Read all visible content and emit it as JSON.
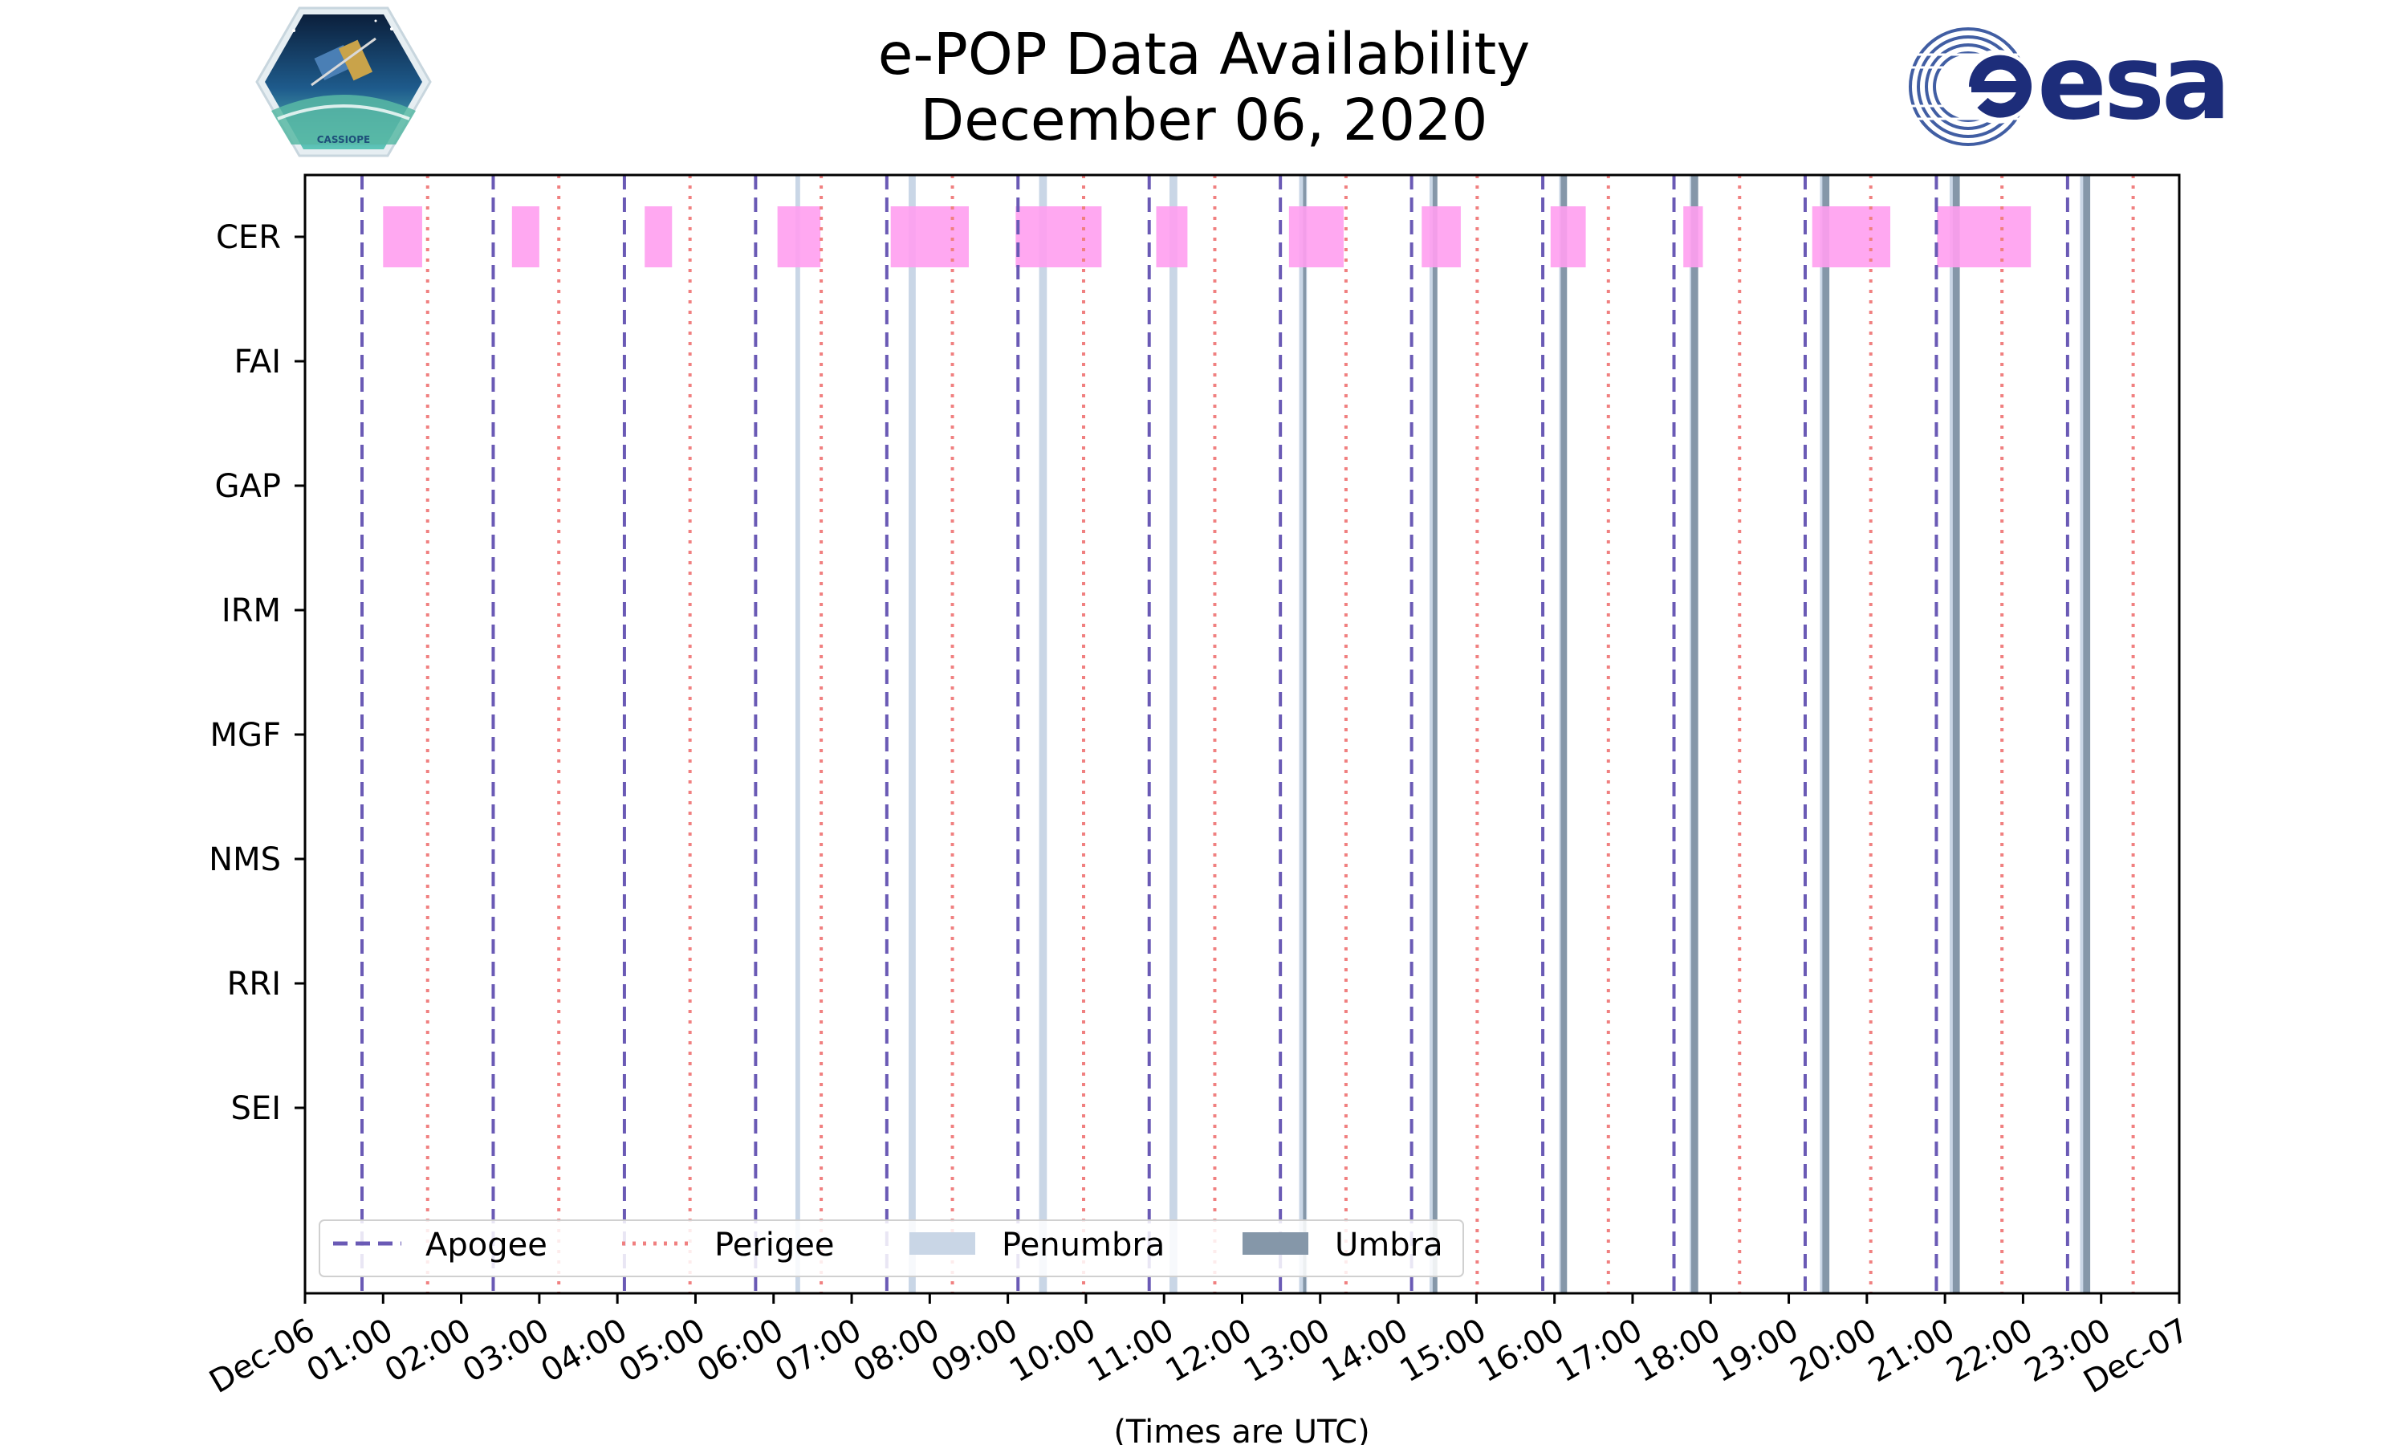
{
  "title": {
    "line1": "e-POP Data Availability",
    "line2": "December 06, 2020"
  },
  "logos": {
    "left": {
      "icon": "cassiope-mission-logo",
      "text": "CASSIOPE"
    },
    "right": {
      "icon": "esa-logo",
      "text": "esa"
    }
  },
  "colors": {
    "apogee": "#6a5ab5",
    "perigee": "#f08080",
    "penumbra": "#c9d6e6",
    "umbra": "#8597a9",
    "data": "#ff9ef0",
    "esa": "#1d2d7a"
  },
  "chart_data": {
    "type": "timeline",
    "title": "e-POP Data Availability December 06, 2020",
    "xlabel": "(Times are UTC)",
    "ylabel": "",
    "x_unit": "hours UTC",
    "xlim": [
      0,
      24
    ],
    "x_ticks": [
      "Dec-06",
      "01:00",
      "02:00",
      "03:00",
      "04:00",
      "05:00",
      "06:00",
      "07:00",
      "08:00",
      "09:00",
      "10:00",
      "11:00",
      "12:00",
      "13:00",
      "14:00",
      "15:00",
      "16:00",
      "17:00",
      "18:00",
      "19:00",
      "20:00",
      "21:00",
      "22:00",
      "23:00",
      "Dec-07"
    ],
    "instruments": [
      "CER",
      "FAI",
      "GAP",
      "IRM",
      "MGF",
      "NMS",
      "RRI",
      "SEI"
    ],
    "apogee_times": [
      0.73,
      2.41,
      4.09,
      5.77,
      7.45,
      9.13,
      10.81,
      12.49,
      14.17,
      15.85,
      17.53,
      19.21,
      20.89,
      22.57
    ],
    "perigee_times": [
      1.57,
      3.25,
      4.93,
      6.61,
      8.29,
      9.97,
      11.65,
      13.33,
      15.01,
      16.69,
      18.37,
      20.05,
      21.73,
      23.41
    ],
    "penumbra": [
      [
        6.28,
        6.34
      ],
      [
        7.73,
        7.82
      ],
      [
        9.4,
        9.5
      ],
      [
        11.07,
        11.17
      ],
      [
        12.73,
        12.83
      ],
      [
        14.4,
        14.5
      ],
      [
        16.06,
        16.16
      ],
      [
        17.73,
        17.83
      ],
      [
        19.4,
        19.5
      ],
      [
        21.06,
        21.16
      ],
      [
        22.73,
        22.83
      ]
    ],
    "umbra": [
      [
        12.78,
        12.82
      ],
      [
        14.44,
        14.5
      ],
      [
        16.08,
        16.16
      ],
      [
        17.75,
        17.84
      ],
      [
        19.43,
        19.52
      ],
      [
        21.1,
        21.19
      ],
      [
        22.77,
        22.86
      ]
    ],
    "data_intervals": {
      "CER": [
        [
          1.0,
          1.5
        ],
        [
          2.65,
          3.0
        ],
        [
          4.35,
          4.7
        ],
        [
          6.05,
          6.6
        ],
        [
          7.5,
          8.5
        ],
        [
          9.1,
          10.2
        ],
        [
          10.9,
          11.3
        ],
        [
          12.6,
          13.3
        ],
        [
          14.3,
          14.8
        ],
        [
          15.95,
          16.4
        ],
        [
          17.65,
          17.9
        ],
        [
          19.3,
          20.3
        ],
        [
          20.9,
          22.1
        ]
      ],
      "FAI": [],
      "GAP": [],
      "IRM": [],
      "MGF": [],
      "NMS": [],
      "RRI": [],
      "SEI": []
    },
    "legend": {
      "location": "lower-left",
      "entries": [
        "Apogee",
        "Perigee",
        "Penumbra",
        "Umbra"
      ]
    }
  }
}
